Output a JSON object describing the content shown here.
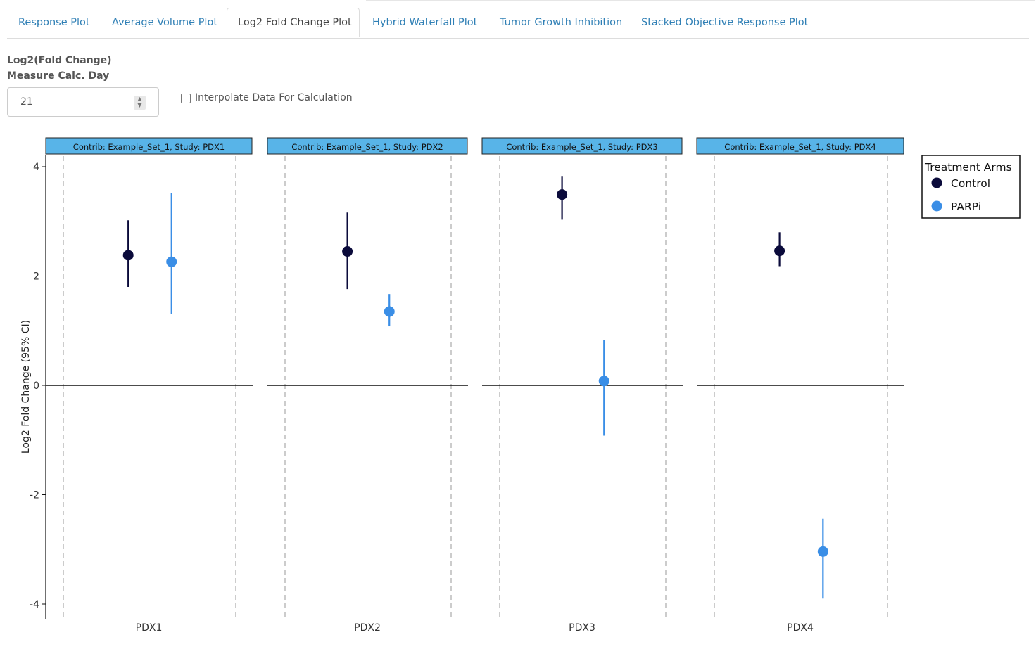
{
  "tabs": [
    {
      "label": "Response Plot",
      "active": false
    },
    {
      "label": "Average Volume Plot",
      "active": false
    },
    {
      "label": "Log2 Fold Change Plot",
      "active": true
    },
    {
      "label": "Hybrid Waterfall Plot",
      "active": false
    },
    {
      "label": "Tumor Growth Inhibition",
      "active": false
    },
    {
      "label": "Stacked Objective Response Plot",
      "active": false
    }
  ],
  "controls": {
    "measure_label_line1": "Log2(Fold Change)",
    "measure_label_line2": "Measure Calc. Day",
    "measure_day_value": "21",
    "interpolate_label": "Interpolate Data For Calculation",
    "interpolate_checked": false
  },
  "colors": {
    "tab_link": "#2f7fb5",
    "strip_fill": "#58b4e8",
    "control": "#0b0b3b",
    "parpi": "#3a8ee6"
  },
  "chart_data": {
    "type": "scatter",
    "ylabel": "Log2 Fold Change (95% CI)",
    "ylim": [
      -4.3,
      4.2
    ],
    "yticks": [
      -4,
      -2,
      0,
      2,
      4
    ],
    "reference_line_y": 0,
    "legend": {
      "title": "Treatment Arms",
      "position": "top-right",
      "entries": [
        "Control",
        "PARPi"
      ]
    },
    "facets": [
      {
        "strip": "Contrib: Example_Set_1, Study: PDX1",
        "xlabel": "PDX1",
        "points": [
          {
            "arm": "Control",
            "y": 2.38,
            "lo": 1.8,
            "hi": 3.02
          },
          {
            "arm": "PARPi",
            "y": 2.26,
            "lo": 1.3,
            "hi": 3.52
          }
        ]
      },
      {
        "strip": "Contrib: Example_Set_1, Study: PDX2",
        "xlabel": "PDX2",
        "points": [
          {
            "arm": "Control",
            "y": 2.45,
            "lo": 1.76,
            "hi": 3.16
          },
          {
            "arm": "PARPi",
            "y": 1.35,
            "lo": 1.08,
            "hi": 1.67
          }
        ]
      },
      {
        "strip": "Contrib: Example_Set_1, Study: PDX3",
        "xlabel": "PDX3",
        "points": [
          {
            "arm": "Control",
            "y": 3.49,
            "lo": 3.03,
            "hi": 3.83
          },
          {
            "arm": "PARPi",
            "y": 0.08,
            "lo": -0.92,
            "hi": 0.83
          }
        ]
      },
      {
        "strip": "Contrib: Example_Set_1, Study: PDX4",
        "xlabel": "PDX4",
        "points": [
          {
            "arm": "Control",
            "y": 2.46,
            "lo": 2.18,
            "hi": 2.8
          },
          {
            "arm": "PARPi",
            "y": -3.04,
            "lo": -3.9,
            "hi": -2.44
          }
        ]
      }
    ]
  }
}
